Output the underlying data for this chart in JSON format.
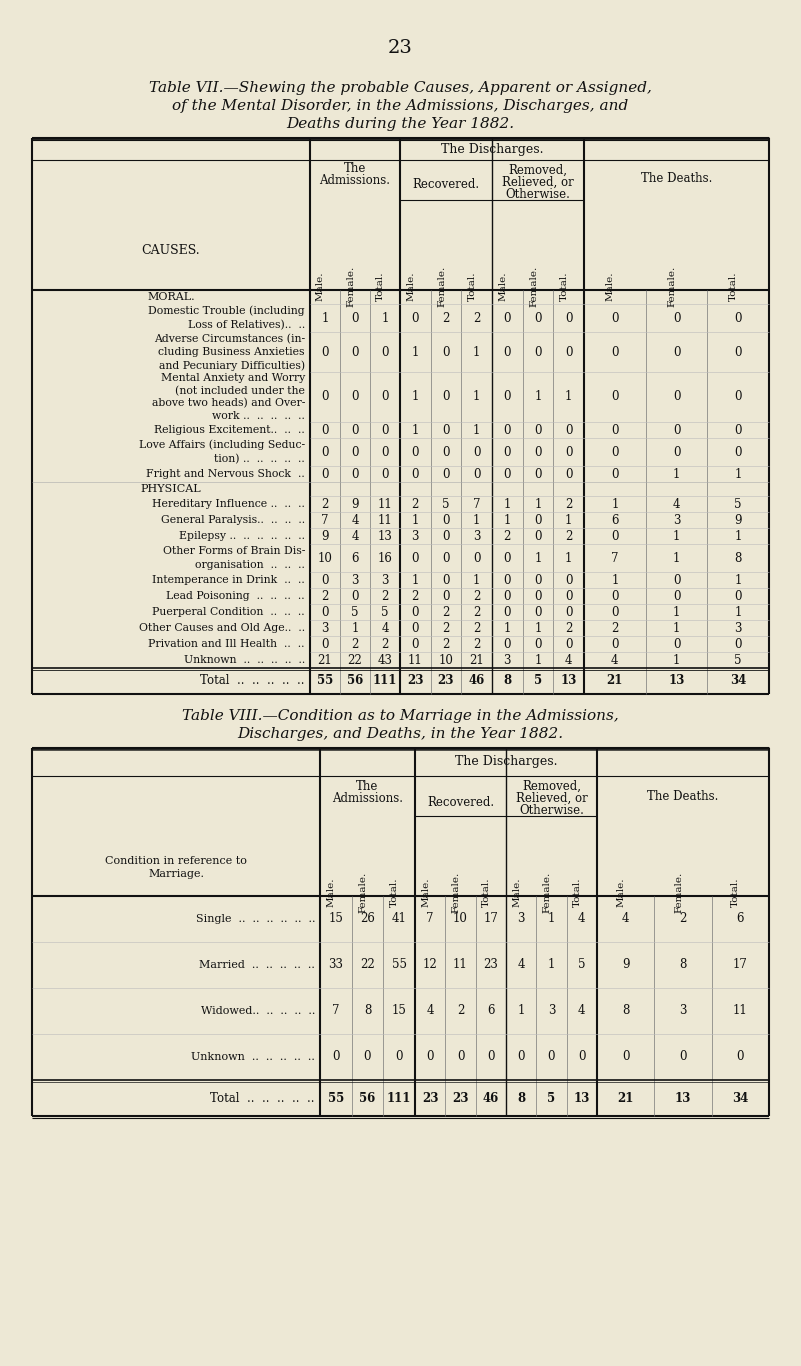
{
  "bg_color": "#ede8d5",
  "page_number": "23",
  "table7_title_line1": "Table VII.—Shewing the probable Causes, Apparent or Assigned,",
  "table7_title_line2": "of the Mental Disorder, in the Admissions, Discharges, and",
  "table7_title_line3": "Deaths during the Year 1882.",
  "table7_causes": [
    "MORAL.",
    "Domestic Trouble (including\nLoss of Relatives)..  ..",
    "Adverse Circumstances (in-\ncluding Business Anxieties\nand Pecuniary Difficulties)",
    "Mental Anxiety and Worry\n(not included under the\nabove two heads) and Over-\nwork ..  ..  ..  ..  ..",
    "Religious Excitement..  ..  ..",
    "Love Affairs (including Seduc-\ntion) ..  ..  ..  ..  ..",
    "Fright and Nervous Shock  ..",
    "PHYSICAL",
    "Hereditary Influence ..  ..  ..",
    "General Paralysis..  ..  ..  ..",
    "Epilepsy ..  ..  ..  ..  ..  ..",
    "Other Forms of Brain Dis-\norganisation  ..  ..  ..",
    "Intemperance in Drink  ..  ..",
    "Lead Poisoning  ..  ..  ..  ..",
    "Puerperal Condition  ..  ..  ..",
    "Other Causes and Old Age..  ..",
    "Privation and Ill Health  ..  ..",
    "Unknown  ..  ..  ..  ..  ..",
    "Total  ..  ..  ..  ..  .."
  ],
  "table7_data": [
    [
      null,
      null,
      null,
      null,
      null,
      null,
      null,
      null,
      null,
      null,
      null,
      null
    ],
    [
      1,
      0,
      1,
      0,
      2,
      2,
      0,
      0,
      0,
      0,
      0,
      0
    ],
    [
      0,
      0,
      0,
      1,
      0,
      1,
      0,
      0,
      0,
      0,
      0,
      0
    ],
    [
      0,
      0,
      0,
      1,
      0,
      1,
      0,
      1,
      1,
      0,
      0,
      0
    ],
    [
      0,
      0,
      0,
      1,
      0,
      1,
      0,
      0,
      0,
      0,
      0,
      0
    ],
    [
      0,
      0,
      0,
      0,
      0,
      0,
      0,
      0,
      0,
      0,
      0,
      0
    ],
    [
      0,
      0,
      0,
      0,
      0,
      0,
      0,
      0,
      0,
      0,
      1,
      1
    ],
    [
      null,
      null,
      null,
      null,
      null,
      null,
      null,
      null,
      null,
      null,
      null,
      null
    ],
    [
      2,
      9,
      11,
      2,
      5,
      7,
      1,
      1,
      2,
      1,
      4,
      5
    ],
    [
      7,
      4,
      11,
      1,
      0,
      1,
      1,
      0,
      1,
      6,
      3,
      9
    ],
    [
      9,
      4,
      13,
      3,
      0,
      3,
      2,
      0,
      2,
      0,
      1,
      1
    ],
    [
      10,
      6,
      16,
      0,
      0,
      0,
      0,
      1,
      1,
      7,
      1,
      8
    ],
    [
      0,
      3,
      3,
      1,
      0,
      1,
      0,
      0,
      0,
      1,
      0,
      1
    ],
    [
      2,
      0,
      2,
      2,
      0,
      2,
      0,
      0,
      0,
      0,
      0,
      0
    ],
    [
      0,
      5,
      5,
      0,
      2,
      2,
      0,
      0,
      0,
      0,
      1,
      1
    ],
    [
      3,
      1,
      4,
      0,
      2,
      2,
      1,
      1,
      2,
      2,
      1,
      3
    ],
    [
      0,
      2,
      2,
      0,
      2,
      2,
      0,
      0,
      0,
      0,
      0,
      0
    ],
    [
      21,
      22,
      43,
      11,
      10,
      21,
      3,
      1,
      4,
      4,
      1,
      5
    ],
    [
      55,
      56,
      111,
      23,
      23,
      46,
      8,
      5,
      13,
      21,
      13,
      34
    ]
  ],
  "table7_row_heights": [
    14,
    28,
    40,
    50,
    16,
    28,
    16,
    14,
    16,
    16,
    16,
    28,
    16,
    16,
    16,
    16,
    16,
    16,
    26
  ],
  "table8_title_line1": "Table VIII.—Condition as to Marriage in the Admissions,",
  "table8_title_line2": "Discharges, and Deaths, in the Year 1882.",
  "table8_row_labels": [
    "Single  ..  ..  ..  ..  ..  ..",
    "Married  ..  ..  ..  ..  ..",
    "Widowed..  ..  ..  ..  ..",
    "Unknown  ..  ..  ..  ..  .."
  ],
  "table8_data": [
    [
      15,
      26,
      41,
      7,
      10,
      17,
      3,
      1,
      4,
      4,
      2,
      6
    ],
    [
      33,
      22,
      55,
      12,
      11,
      23,
      4,
      1,
      5,
      9,
      8,
      17
    ],
    [
      7,
      8,
      15,
      4,
      2,
      6,
      1,
      3,
      4,
      8,
      3,
      11
    ],
    [
      0,
      0,
      0,
      0,
      0,
      0,
      0,
      0,
      0,
      0,
      0,
      0
    ]
  ],
  "table8_total": [
    55,
    56,
    111,
    23,
    23,
    46,
    8,
    5,
    13,
    21,
    13,
    34
  ]
}
